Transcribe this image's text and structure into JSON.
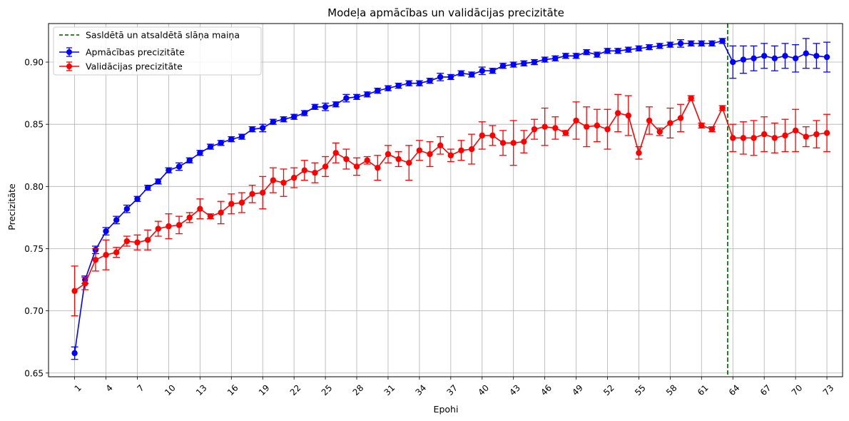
{
  "chart_data": {
    "type": "line",
    "title": "Modeļa apmācības un validācijas precizitāte",
    "xlabel": "Epohi",
    "ylabel": "Precizitāte",
    "xlim": [
      -1.5,
      74.5
    ],
    "ylim": [
      0.647,
      0.931
    ],
    "x_ticks": [
      1,
      4,
      7,
      10,
      13,
      16,
      19,
      22,
      25,
      28,
      31,
      34,
      37,
      40,
      43,
      46,
      49,
      52,
      55,
      58,
      61,
      64,
      67,
      70,
      73
    ],
    "y_ticks": [
      0.65,
      0.7,
      0.75,
      0.8,
      0.85,
      0.9
    ],
    "y_tick_labels": [
      "0.65",
      "0.70",
      "0.75",
      "0.80",
      "0.85",
      "0.90"
    ],
    "grid": true,
    "legend_position": "top-left",
    "vline": {
      "x": 63.5,
      "label": "Sasldētā un atsaldētā slāņa maiņa",
      "color": "#008000"
    },
    "series": [
      {
        "name": "Apmācības precizitāte",
        "color": "#0000ff",
        "values": [
          0.666,
          0.725,
          0.749,
          0.764,
          0.773,
          0.782,
          0.79,
          0.799,
          0.804,
          0.813,
          0.816,
          0.821,
          0.827,
          0.832,
          0.835,
          0.838,
          0.84,
          0.846,
          0.847,
          0.852,
          0.854,
          0.856,
          0.859,
          0.864,
          0.864,
          0.866,
          0.871,
          0.872,
          0.874,
          0.877,
          0.879,
          0.881,
          0.883,
          0.883,
          0.885,
          0.888,
          0.888,
          0.891,
          0.89,
          0.893,
          0.893,
          0.897,
          0.898,
          0.899,
          0.9,
          0.902,
          0.903,
          0.905,
          0.905,
          0.908,
          0.906,
          0.909,
          0.909,
          0.91,
          0.911,
          0.912,
          0.913,
          0.914,
          0.915,
          0.915,
          0.915,
          0.915,
          0.917,
          0.9,
          0.902,
          0.903,
          0.905,
          0.903,
          0.905,
          0.903,
          0.907,
          0.905,
          0.904
        ],
        "errors": [
          0.005,
          0.003,
          0.003,
          0.003,
          0.003,
          0.003,
          0.002,
          0.002,
          0.002,
          0.002,
          0.003,
          0.002,
          0.002,
          0.002,
          0.002,
          0.002,
          0.002,
          0.002,
          0.003,
          0.002,
          0.002,
          0.002,
          0.002,
          0.002,
          0.003,
          0.002,
          0.003,
          0.002,
          0.002,
          0.002,
          0.002,
          0.002,
          0.002,
          0.002,
          0.002,
          0.003,
          0.002,
          0.002,
          0.002,
          0.003,
          0.002,
          0.002,
          0.002,
          0.002,
          0.002,
          0.002,
          0.002,
          0.002,
          0.002,
          0.002,
          0.002,
          0.002,
          0.002,
          0.002,
          0.002,
          0.002,
          0.002,
          0.002,
          0.003,
          0.002,
          0.002,
          0.002,
          0.002,
          0.013,
          0.011,
          0.01,
          0.01,
          0.01,
          0.01,
          0.011,
          0.012,
          0.01,
          0.012
        ]
      },
      {
        "name": "Validācijas precizitāte",
        "color": "#ff0000",
        "values": [
          0.716,
          0.722,
          0.741,
          0.745,
          0.747,
          0.756,
          0.755,
          0.757,
          0.766,
          0.768,
          0.769,
          0.775,
          0.782,
          0.776,
          0.779,
          0.786,
          0.787,
          0.794,
          0.795,
          0.805,
          0.803,
          0.807,
          0.813,
          0.811,
          0.816,
          0.827,
          0.822,
          0.816,
          0.821,
          0.815,
          0.826,
          0.822,
          0.819,
          0.829,
          0.826,
          0.833,
          0.825,
          0.829,
          0.83,
          0.841,
          0.841,
          0.835,
          0.835,
          0.836,
          0.846,
          0.848,
          0.847,
          0.843,
          0.853,
          0.848,
          0.849,
          0.846,
          0.859,
          0.857,
          0.827,
          0.853,
          0.844,
          0.851,
          0.855,
          0.871,
          0.849,
          0.846,
          0.863,
          0.839,
          0.839,
          0.839,
          0.842,
          0.839,
          0.841,
          0.845,
          0.84,
          0.842,
          0.843
        ],
        "errors": [
          0.02,
          0.005,
          0.009,
          0.012,
          0.004,
          0.004,
          0.006,
          0.008,
          0.006,
          0.01,
          0.007,
          0.004,
          0.008,
          0.002,
          0.009,
          0.008,
          0.008,
          0.007,
          0.013,
          0.01,
          0.011,
          0.008,
          0.008,
          0.008,
          0.008,
          0.008,
          0.008,
          0.007,
          0.003,
          0.01,
          0.007,
          0.006,
          0.014,
          0.008,
          0.01,
          0.007,
          0.005,
          0.008,
          0.012,
          0.011,
          0.008,
          0.01,
          0.018,
          0.009,
          0.008,
          0.015,
          0.009,
          0.002,
          0.015,
          0.016,
          0.013,
          0.016,
          0.015,
          0.016,
          0.005,
          0.011,
          0.003,
          0.012,
          0.011,
          0.002,
          0.002,
          0.002,
          0.002,
          0.011,
          0.013,
          0.014,
          0.014,
          0.012,
          0.013,
          0.017,
          0.008,
          0.011,
          0.015
        ]
      }
    ]
  }
}
